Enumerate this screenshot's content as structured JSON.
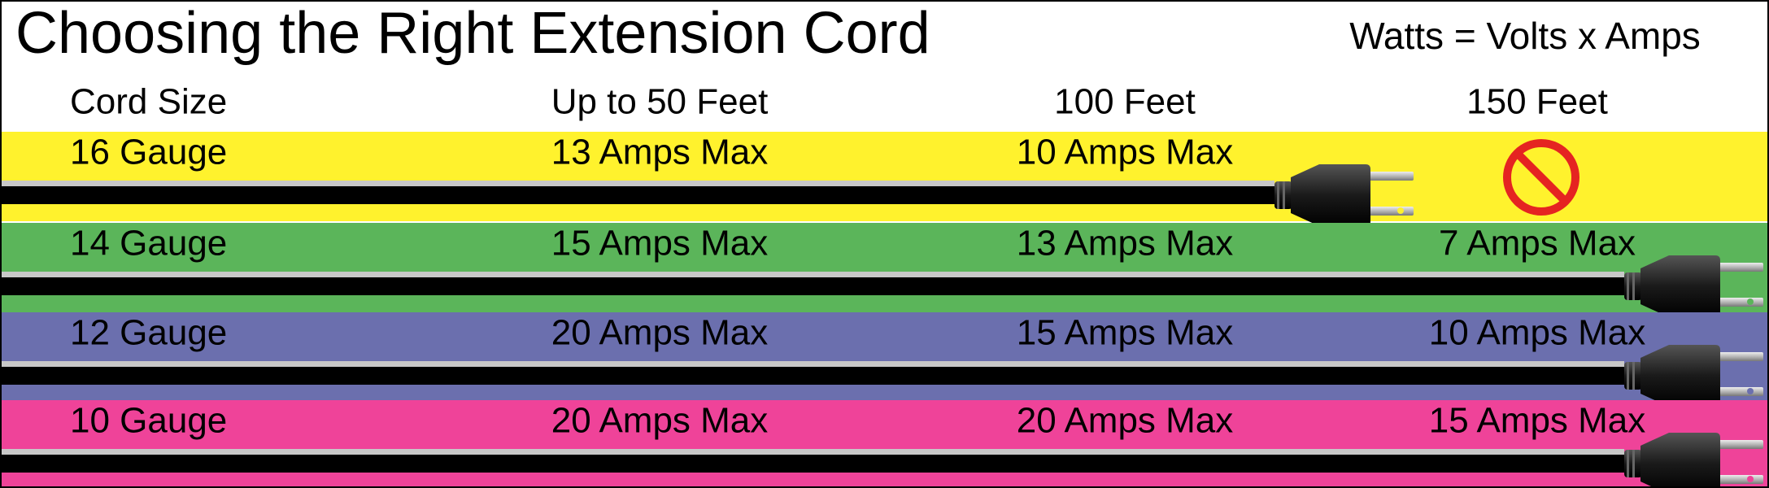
{
  "title": "Choosing the Right Extension Cord",
  "formula": "Watts = Volts x Amps",
  "headers": [
    "Cord Size",
    "Up to 50 Feet",
    "100 Feet",
    "150 Feet"
  ],
  "rows": [
    {
      "gauge": "16 Gauge",
      "amps": [
        "13 Amps Max",
        "10 Amps Max"
      ]
    },
    {
      "gauge": "14 Gauge",
      "amps": [
        "15 Amps Max",
        "13 Amps Max",
        "7 Amps Max"
      ]
    },
    {
      "gauge": "12 Gauge",
      "amps": [
        "20 Amps Max",
        "15 Amps Max",
        "10 Amps Max"
      ]
    },
    {
      "gauge": "10 Gauge",
      "amps": [
        "20 Amps Max",
        "20 Amps Max",
        "15 Amps Max"
      ]
    }
  ]
}
